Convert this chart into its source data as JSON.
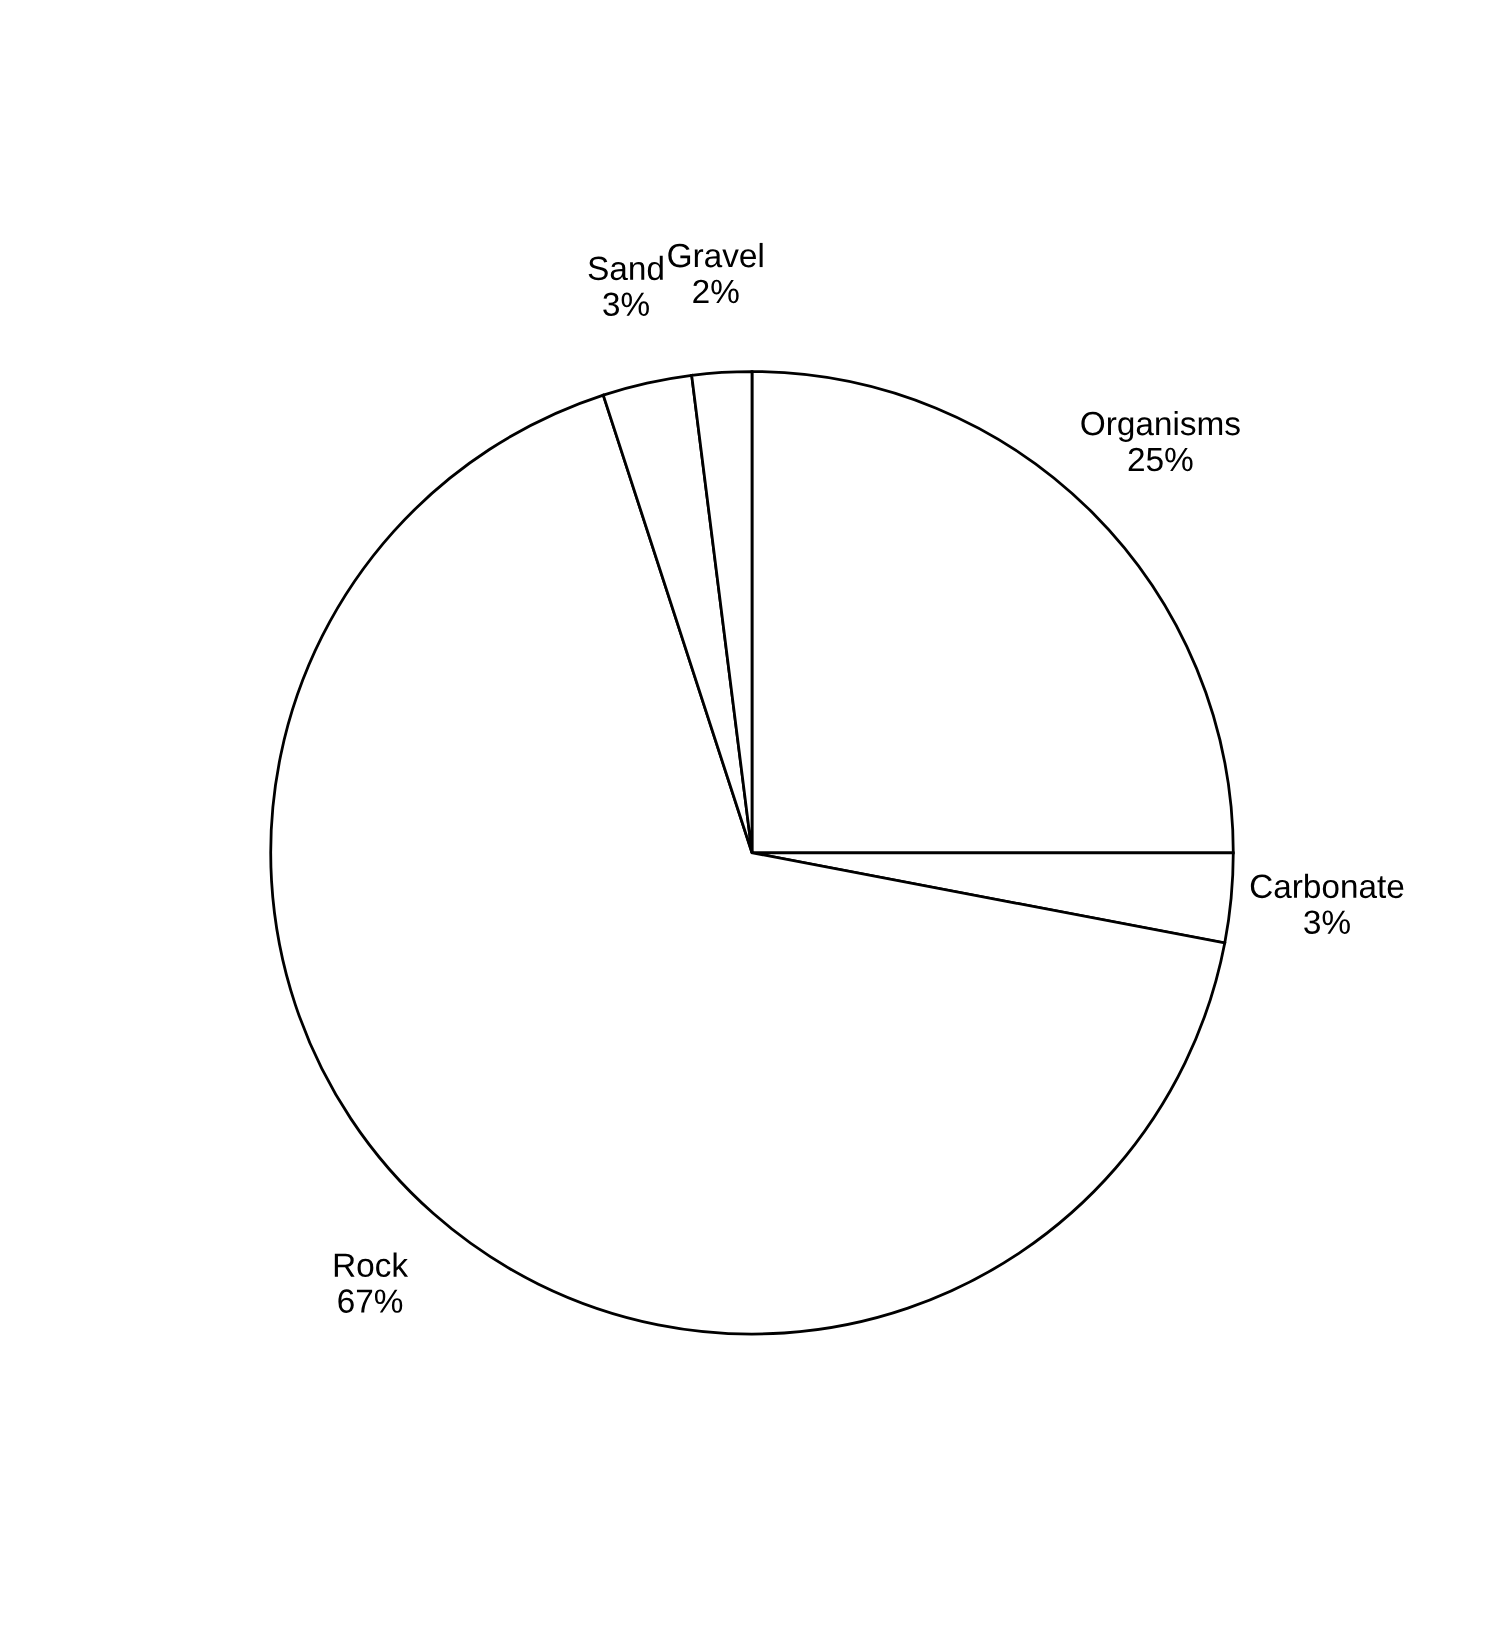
{
  "chart_data": {
    "type": "pie",
    "categories": [
      "Organisms",
      "Carbonate",
      "Rock",
      "Sand",
      "Gravel"
    ],
    "values": [
      25,
      3,
      67,
      3,
      2
    ],
    "colors": [
      "#ffffff",
      "#ffffff",
      "#ffffff",
      "#ffffff",
      "#ffffff"
    ],
    "value_labels": [
      "25%",
      "3%",
      "67%",
      "3%",
      "2%"
    ],
    "legend": false
  }
}
